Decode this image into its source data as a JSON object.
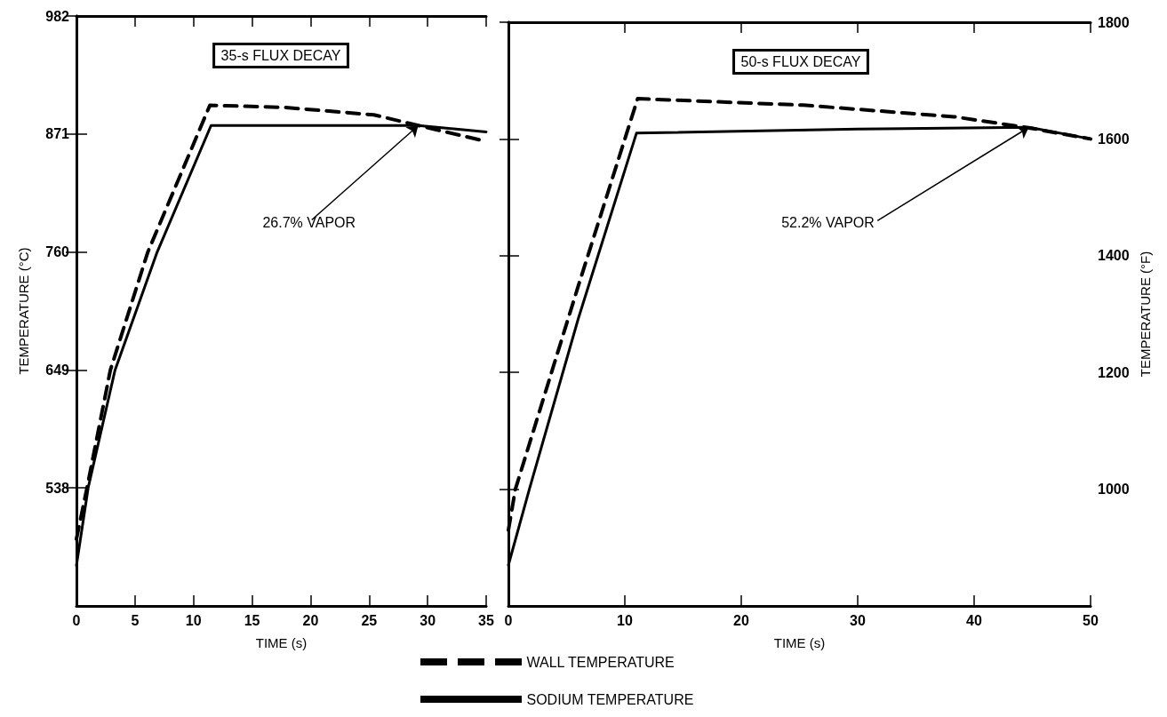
{
  "chart_data": [
    {
      "type": "line",
      "title": "35-s FLUX DECAY",
      "xlabel": "TIME (s)",
      "ylabel": "TEMPERATURE (°C)",
      "xlim": [
        0,
        35
      ],
      "xticks": [
        0,
        5,
        10,
        15,
        20,
        25,
        30,
        35
      ],
      "ylim": [
        427,
        982
      ],
      "yticks": [
        538,
        649,
        760,
        871,
        982
      ],
      "grid": false,
      "marker": "none",
      "legend": "bottom",
      "annotations": [
        {
          "text": "26.7% VAPOR",
          "x": 29.2,
          "y": 879
        }
      ],
      "series": [
        {
          "name": "WALL TEMPERATURE",
          "color": "#000000",
          "line_style": "dashed",
          "x": [
            0,
            0.9,
            2.9,
            6.1,
            11.4,
            17.8,
            25.4,
            29.2,
            35
          ],
          "values": [
            490,
            538,
            649,
            760,
            898,
            896,
            889,
            879,
            864
          ]
        },
        {
          "name": "SODIUM TEMPERATURE",
          "color": "#000000",
          "line_style": "solid",
          "x": [
            0,
            1,
            3.3,
            6.9,
            11.5,
            20,
            29.2,
            35
          ],
          "values": [
            465,
            538,
            649,
            760,
            879,
            879,
            879,
            873
          ]
        }
      ]
    },
    {
      "type": "line",
      "title": "50-s FLUX DECAY",
      "xlabel": "TIME (s)",
      "ylabel": "TEMPERATURE (°F)",
      "xlim": [
        0,
        50
      ],
      "xticks": [
        0,
        10,
        20,
        30,
        40,
        50
      ],
      "ylim": [
        800,
        1800
      ],
      "yticks": [
        1000,
        1200,
        1400,
        1600,
        1800
      ],
      "grid": false,
      "marker": "none",
      "annotations": [
        {
          "text": "52.2% VAPOR",
          "x": 44.7,
          "y": 1620
        }
      ],
      "series": [
        {
          "color": "#000000",
          "line_style": "dashed",
          "x": [
            0,
            0.6,
            6,
            11.1,
            25.3,
            38.3,
            44.7,
            50
          ],
          "values": [
            930,
            1000,
            1348,
            1669,
            1658,
            1638,
            1619,
            1600
          ]
        },
        {
          "color": "#000000",
          "line_style": "solid",
          "x": [
            0,
            1.8,
            6,
            11,
            30,
            44.7,
            50
          ],
          "values": [
            870,
            1000,
            1292,
            1610,
            1617,
            1620,
            1600
          ]
        }
      ]
    }
  ]
}
